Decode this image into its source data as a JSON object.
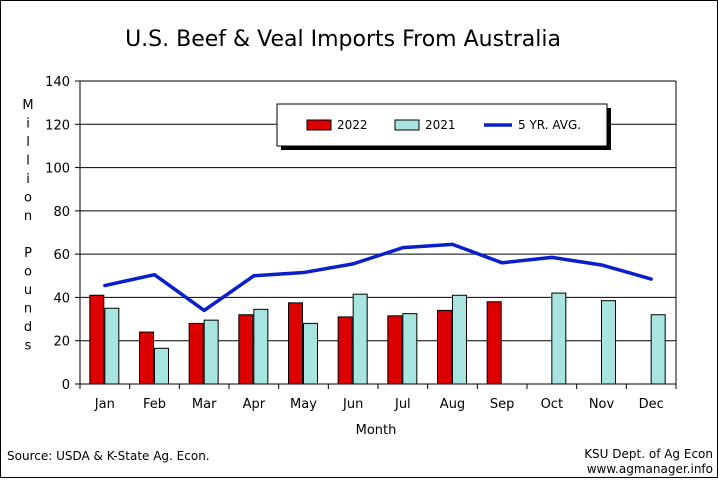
{
  "chart_data": {
    "type": "bar",
    "title": "U.S. Beef & Veal Imports From Australia",
    "ylabel": "Million Pounds",
    "xlabel": "Month",
    "categories": [
      "Jan",
      "Feb",
      "Mar",
      "Apr",
      "May",
      "Jun",
      "Jul",
      "Aug",
      "Sep",
      "Oct",
      "Nov",
      "Dec"
    ],
    "ylim": [
      0,
      140
    ],
    "yticks": [
      0,
      20,
      40,
      60,
      80,
      100,
      120,
      140
    ],
    "grid": true,
    "legend_position": "top-right",
    "series": [
      {
        "name": "2022",
        "kind": "bar",
        "color": "#dd0000",
        "values": [
          41,
          24,
          28,
          32,
          37.5,
          31,
          31.5,
          34,
          38,
          null,
          null,
          null
        ]
      },
      {
        "name": "2021",
        "kind": "bar",
        "color": "#a8e4e0",
        "values": [
          35,
          16.5,
          29.5,
          34.5,
          28,
          41.5,
          32.5,
          41,
          null,
          42,
          38.5,
          32
        ]
      },
      {
        "name": "5 YR. AVG.",
        "kind": "line",
        "color": "#0a1fcc",
        "values": [
          45.5,
          50.5,
          34,
          50,
          51.5,
          55.5,
          63,
          64.5,
          56,
          58.5,
          55,
          48.5
        ]
      }
    ]
  },
  "footer": {
    "source": "Source:  USDA & K-State Ag. Econ.",
    "credit_line1": "KSU Dept. of Ag Econ",
    "credit_line2": "www.agmanager.info"
  }
}
